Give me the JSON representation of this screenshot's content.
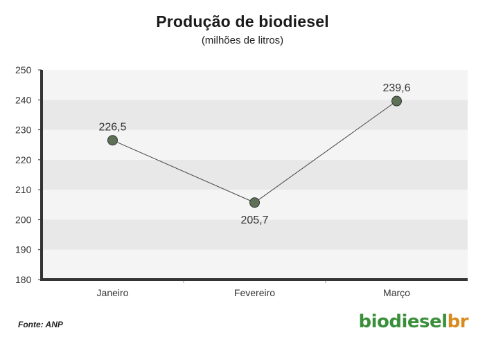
{
  "header": {
    "title": "Produção de biodiesel",
    "subtitle": "(milhões de litros)"
  },
  "footer": {
    "source": "Fonte: ANP",
    "logo_main": "biodiesel",
    "logo_accent": "br"
  },
  "colors": {
    "band_light": "#f4f4f4",
    "band_dark": "#e8e8e8",
    "axis": "#333333",
    "line": "#444444",
    "marker_fill": "#5e7157",
    "marker_stroke": "#333333"
  },
  "chart_data": {
    "type": "line",
    "title": "Produção de biodiesel",
    "subtitle": "(milhões de litros)",
    "categories": [
      "Janeiro",
      "Fevereiro",
      "Março"
    ],
    "series": [
      {
        "values": [
          226.5,
          205.7,
          239.6
        ]
      }
    ],
    "data_labels": [
      "226,5",
      "205,7",
      "239,6"
    ],
    "ylim": [
      180,
      250
    ],
    "yticks": [
      180,
      190,
      200,
      210,
      220,
      230,
      240,
      250
    ],
    "grid": false,
    "legend": "none"
  }
}
